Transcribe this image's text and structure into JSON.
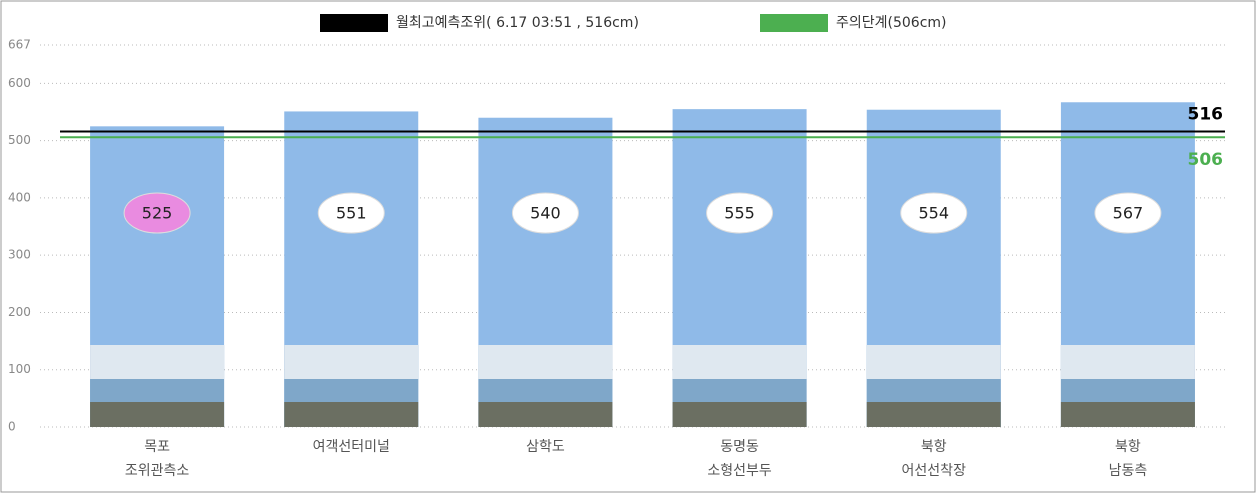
{
  "chart_data": {
    "type": "bar",
    "legend": [
      "월최고예측조위( 6.17  03:51 , 516cm)",
      "주의단계(506cm)"
    ],
    "categories": [
      [
        "목포",
        "조위관측소"
      ],
      [
        "여객선터미널"
      ],
      [
        "삼학도"
      ],
      [
        "동명동",
        "소형선부두"
      ],
      [
        "북항",
        "어선선착장"
      ],
      [
        "북항",
        "남동측"
      ]
    ],
    "values": [
      525,
      551,
      540,
      555,
      554,
      567
    ],
    "color": "#8fbae8",
    "label_colors": [
      "#e98be0",
      "#ffffff",
      "#ffffff",
      "#ffffff",
      "#ffffff",
      "#ffffff"
    ],
    "reference_lines": [
      {
        "value": 516,
        "label": "516",
        "color": "#000000"
      },
      {
        "value": 506,
        "label": "506",
        "color": "#4caf50"
      }
    ],
    "ylim": [
      0,
      667
    ],
    "yticks": [
      0,
      100,
      200,
      300,
      400,
      500,
      600,
      667
    ],
    "grid": true
  }
}
